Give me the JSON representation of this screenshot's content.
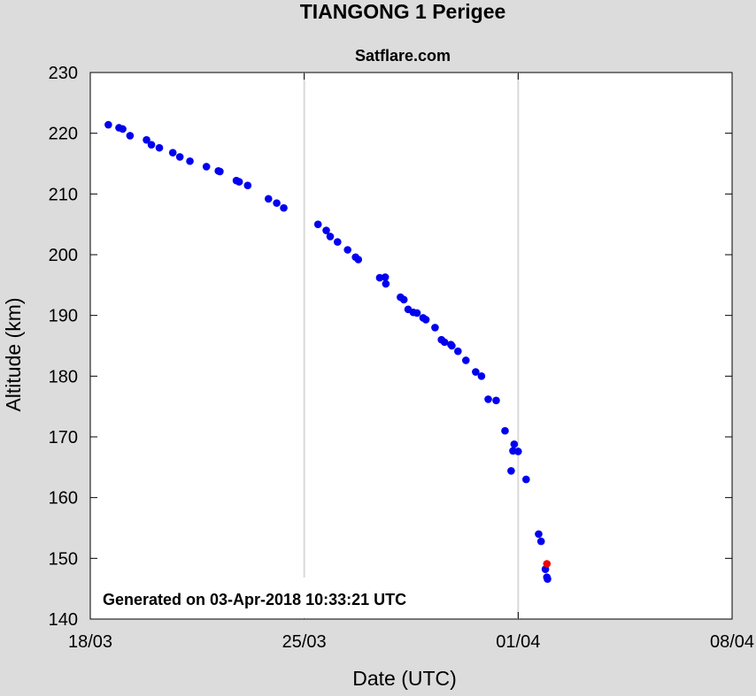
{
  "chart_data": {
    "type": "scatter",
    "title": "TIANGONG 1 Perigee",
    "subtitle": "Satflare.com",
    "xlabel": "Date (UTC)",
    "ylabel": "Altitude (km)",
    "x_unit": "days since 18/03 00:00 UTC",
    "xlim": [
      0,
      21
    ],
    "ylim": [
      140,
      230
    ],
    "x_ticks": [
      {
        "value": 0,
        "label": "18/03"
      },
      {
        "value": 7,
        "label": "25/03"
      },
      {
        "value": 14,
        "label": "01/04"
      },
      {
        "value": 21,
        "label": "08/04"
      }
    ],
    "y_ticks": [
      140,
      150,
      160,
      170,
      180,
      190,
      200,
      210,
      220,
      230
    ],
    "grid": true,
    "annotation": "Generated on 03-Apr-2018 10:33:21 UTC",
    "colors": {
      "series": "#0000ee",
      "latest": "#ee0000"
    },
    "series": [
      {
        "color": "#0000ee",
        "points": [
          [
            0.59,
            221.4
          ],
          [
            0.94,
            220.9
          ],
          [
            1.06,
            220.7
          ],
          [
            1.3,
            219.6
          ],
          [
            1.84,
            218.9
          ],
          [
            2.0,
            218.1
          ],
          [
            2.26,
            217.6
          ],
          [
            2.7,
            216.8
          ],
          [
            2.93,
            216.1
          ],
          [
            3.26,
            215.4
          ],
          [
            3.8,
            214.5
          ],
          [
            4.19,
            213.8
          ],
          [
            4.24,
            213.7
          ],
          [
            4.78,
            212.2
          ],
          [
            4.87,
            212.0
          ],
          [
            5.15,
            211.4
          ],
          [
            5.83,
            209.2
          ],
          [
            6.1,
            208.5
          ],
          [
            6.33,
            207.7
          ],
          [
            7.45,
            205.0
          ],
          [
            7.72,
            204.0
          ],
          [
            7.85,
            203.0
          ],
          [
            8.09,
            202.1
          ],
          [
            8.42,
            200.8
          ],
          [
            8.68,
            199.6
          ],
          [
            8.77,
            199.2
          ],
          [
            9.47,
            196.2
          ],
          [
            9.65,
            196.3
          ],
          [
            9.67,
            195.2
          ],
          [
            10.15,
            193.0
          ],
          [
            10.26,
            192.6
          ],
          [
            10.4,
            191.0
          ],
          [
            10.57,
            190.5
          ],
          [
            10.69,
            190.4
          ],
          [
            10.89,
            189.6
          ],
          [
            10.98,
            189.3
          ],
          [
            11.28,
            188.0
          ],
          [
            11.49,
            186.0
          ],
          [
            11.59,
            185.6
          ],
          [
            11.8,
            185.2
          ],
          [
            11.83,
            185.0
          ],
          [
            12.03,
            184.1
          ],
          [
            12.29,
            182.6
          ],
          [
            12.61,
            180.7
          ],
          [
            12.8,
            180.0
          ],
          [
            13.02,
            176.2
          ],
          [
            13.28,
            176.0
          ],
          [
            13.57,
            171.0
          ],
          [
            13.77,
            164.4
          ],
          [
            13.83,
            167.7
          ],
          [
            13.87,
            168.8
          ],
          [
            14.0,
            167.6
          ],
          [
            14.26,
            163.0
          ],
          [
            14.67,
            154.0
          ],
          [
            14.75,
            152.8
          ],
          [
            14.89,
            148.2
          ],
          [
            14.94,
            146.9
          ],
          [
            14.96,
            146.6
          ]
        ]
      },
      {
        "color": "#ee0000",
        "points": [
          [
            14.94,
            149.1
          ]
        ]
      }
    ]
  }
}
